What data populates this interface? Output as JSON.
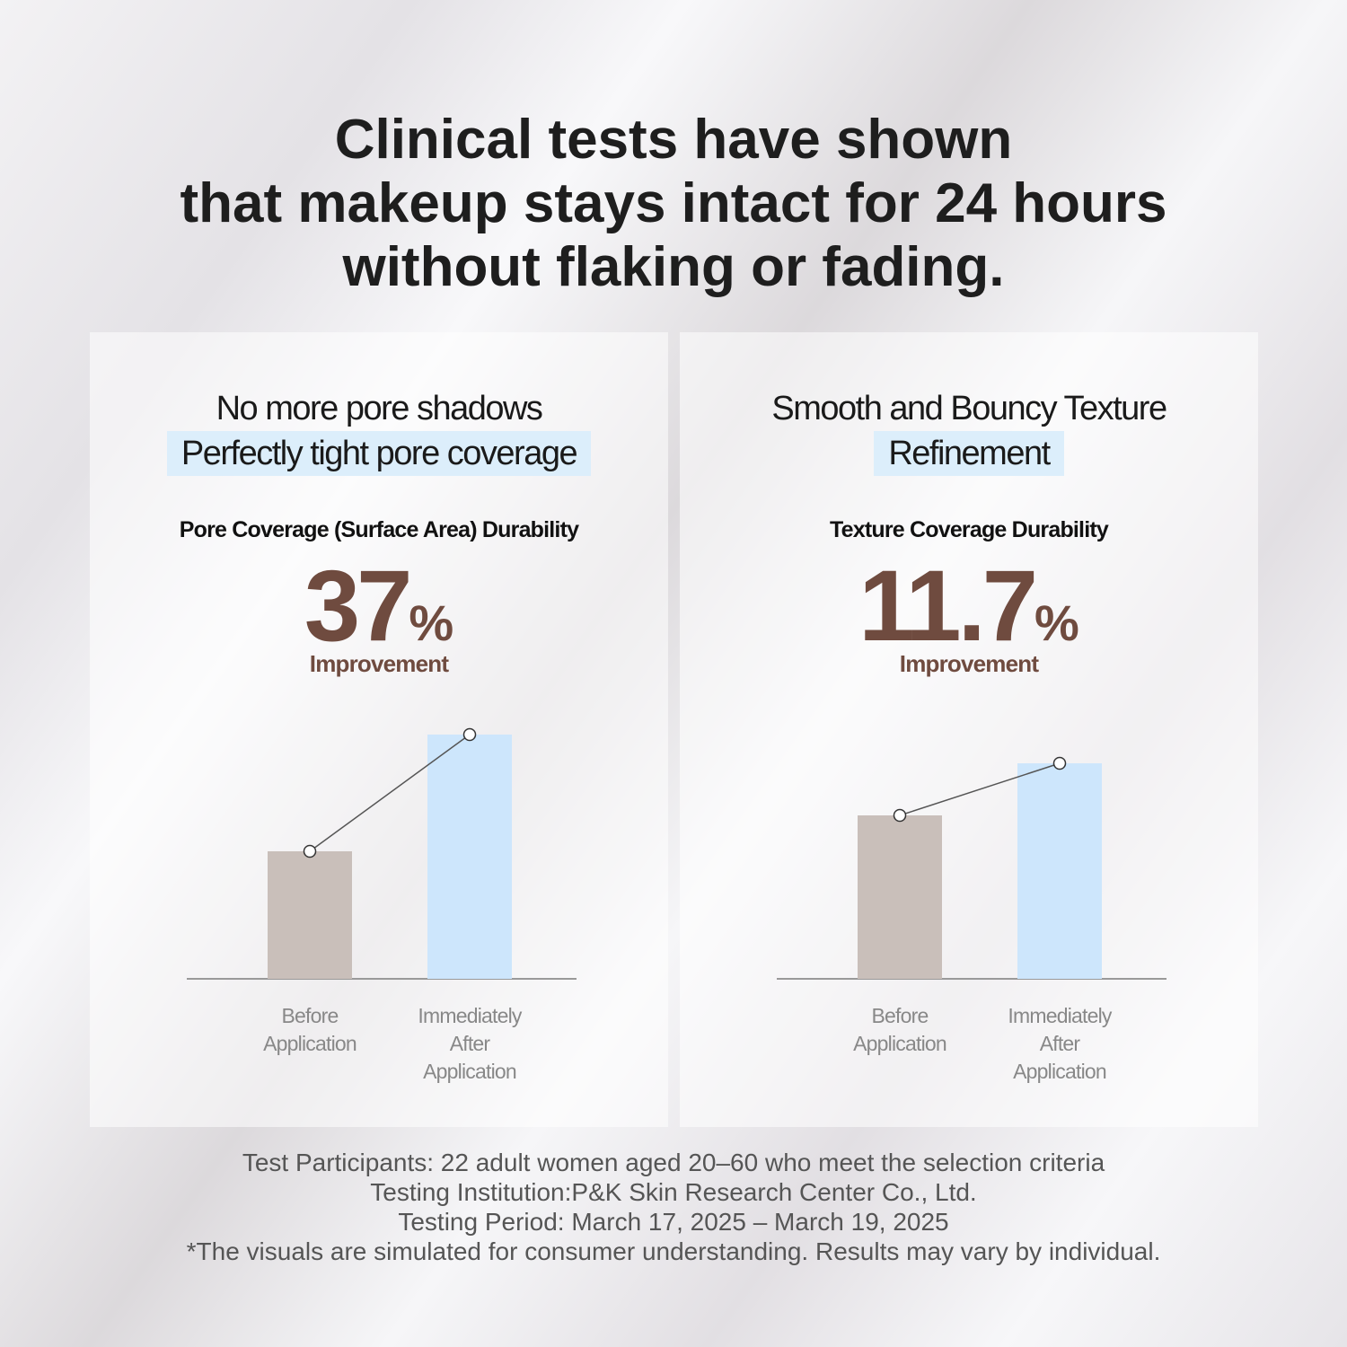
{
  "header": {
    "title_lines": [
      "Clinical tests have shown",
      "that makeup stays intact for 24 hours",
      "without flaking or fading."
    ]
  },
  "chart_data": [
    {
      "type": "bar",
      "headline": [
        "No more pore shadows",
        "Perfectly tight pore coverage"
      ],
      "metric": "Pore Coverage (Surface Area) Durability",
      "stat_number": "37",
      "stat_unit": "%",
      "stat_caption": "Improvement",
      "categories": [
        "Before Application",
        "Immediately After Application"
      ],
      "values": [
        142,
        272
      ],
      "colors": [
        "#c9bfba",
        "#cde6fc"
      ],
      "ylim": [
        0,
        300
      ],
      "connector": true
    },
    {
      "type": "bar",
      "headline": [
        "Smooth and Bouncy Texture",
        "Refinement"
      ],
      "metric": "Texture Coverage Durability",
      "stat_number": "11.7",
      "stat_unit": "%",
      "stat_caption": "Improvement",
      "categories": [
        "Before Application",
        "Immediately After Application"
      ],
      "values": [
        182,
        240
      ],
      "colors": [
        "#c9bfba",
        "#cde6fc"
      ],
      "ylim": [
        0,
        300
      ],
      "connector": true
    }
  ],
  "footnotes": [
    "Test Participants: 22 adult women aged 20–60 who meet the selection criteria",
    "Testing Institution:P&K Skin Research Center Co., Ltd.",
    "Testing Period: March 17, 2025 – March 19, 2025",
    "*The visuals are simulated for consumer understanding. Results may vary by individual."
  ]
}
